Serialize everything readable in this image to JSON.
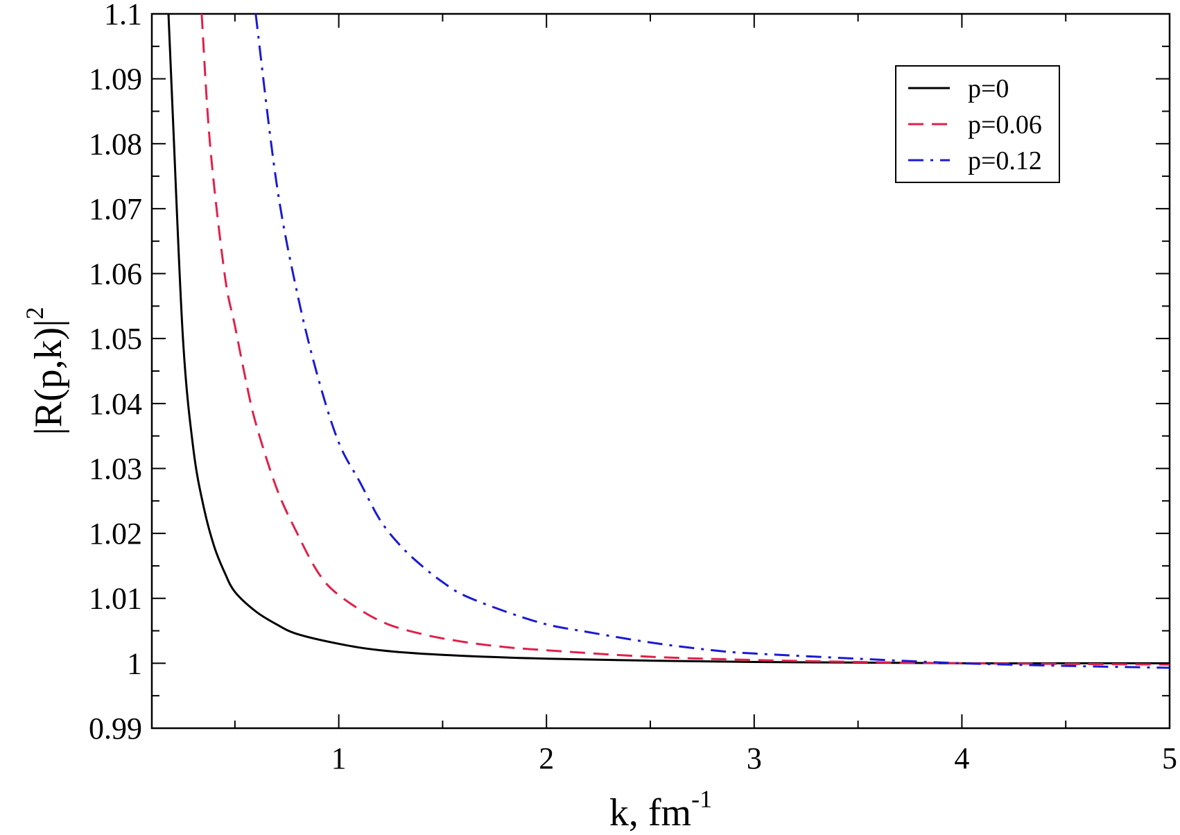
{
  "chart_data": {
    "type": "line",
    "title": "",
    "xlabel": {
      "base": "k, fm",
      "superscript": "-1"
    },
    "ylabel": {
      "base": "|R(p,k)|",
      "superscript": "2"
    },
    "xlim": [
      0.1,
      5
    ],
    "ylim": [
      0.99,
      1.1
    ],
    "xticks": [
      1,
      2,
      3,
      4,
      5
    ],
    "xtick_labels": [
      "1",
      "2",
      "3",
      "4",
      "5"
    ],
    "yticks": [
      0.99,
      1,
      1.01,
      1.02,
      1.03,
      1.04,
      1.05,
      1.06,
      1.07,
      1.08,
      1.09,
      1.1
    ],
    "ytick_labels": [
      "0.99",
      "1",
      "1.01",
      "1.02",
      "1.03",
      "1.04",
      "1.05",
      "1.06",
      "1.07",
      "1.08",
      "1.09",
      "1.1"
    ],
    "grid": false,
    "legend_position": "top-right",
    "series": [
      {
        "name": "p=0",
        "color": "#000000",
        "dash": "solid",
        "x": [
          0.18,
          0.2,
          0.25,
          0.3,
          0.35,
          0.4,
          0.45,
          0.5,
          0.6,
          0.7,
          0.8,
          1.0,
          1.2,
          1.5,
          2.0,
          2.5,
          3.0,
          3.5,
          4.0,
          4.5,
          5.0
        ],
        "y": [
          1.1,
          1.085,
          1.05,
          1.033,
          1.024,
          1.018,
          1.014,
          1.011,
          1.008,
          1.006,
          1.0045,
          1.003,
          1.002,
          1.0013,
          1.0007,
          1.0004,
          1.0002,
          1.0001,
          1.0,
          1.0,
          1.0
        ]
      },
      {
        "name": "p=0.06",
        "color": "#e0204a",
        "dash": "dashed",
        "x": [
          0.34,
          0.38,
          0.45,
          0.5,
          0.55,
          0.6,
          0.7,
          0.8,
          0.9,
          1.0,
          1.2,
          1.4,
          1.6,
          1.8,
          2.0,
          2.5,
          3.0,
          3.5,
          4.0,
          4.5,
          5.0
        ],
        "y": [
          1.1,
          1.08,
          1.06,
          1.052,
          1.044,
          1.037,
          1.027,
          1.02,
          1.014,
          1.0105,
          1.0065,
          1.0045,
          1.0033,
          1.0025,
          1.002,
          1.001,
          1.0005,
          1.0002,
          1.0,
          0.9999,
          0.9998
        ]
      },
      {
        "name": "p=0.12",
        "color": "#1a1ad6",
        "dash": "dashdot",
        "x": [
          0.6,
          0.7,
          0.8,
          0.9,
          1.0,
          1.1,
          1.2,
          1.3,
          1.4,
          1.5,
          1.6,
          1.8,
          2.0,
          2.2,
          2.5,
          2.8,
          3.0,
          3.5,
          4.0,
          4.5,
          5.0
        ],
        "y": [
          1.1,
          1.074,
          1.057,
          1.044,
          1.034,
          1.028,
          1.022,
          1.018,
          1.015,
          1.0125,
          1.0105,
          1.008,
          1.006,
          1.0048,
          1.0032,
          1.002,
          1.0015,
          1.0007,
          1.0,
          0.9996,
          0.9993
        ]
      }
    ]
  }
}
